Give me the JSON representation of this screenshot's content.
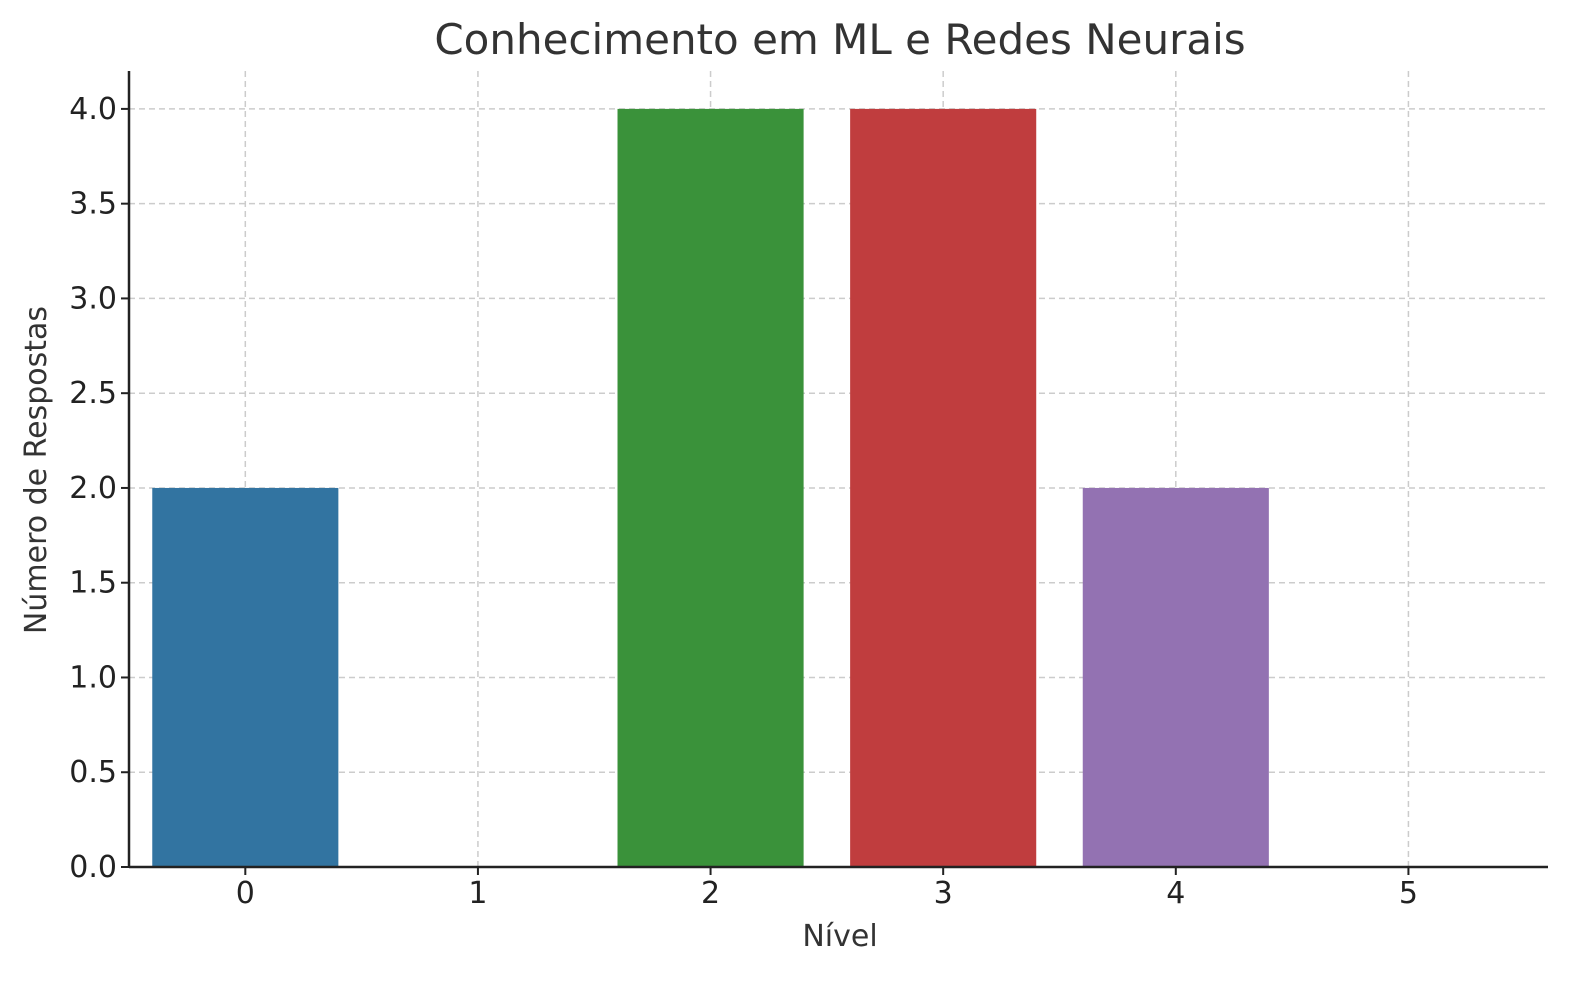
{
  "chart_data": {
    "type": "bar",
    "title": "Conhecimento em ML e Redes Neurais",
    "xlabel": "Nível",
    "ylabel": "Número de Respostas",
    "categories": [
      "0",
      "1",
      "2",
      "3",
      "4",
      "5"
    ],
    "values": [
      2,
      0,
      4,
      4,
      2,
      0
    ],
    "colors": [
      "#3274a1",
      "#e1812c",
      "#3a923a",
      "#c03d3e",
      "#9372b2",
      "#845b53"
    ],
    "ylim": [
      0,
      4.2
    ],
    "yticks": [
      "0.0",
      "0.5",
      "1.0",
      "1.5",
      "2.0",
      "2.5",
      "3.0",
      "3.5",
      "4.0"
    ],
    "grid": true
  }
}
